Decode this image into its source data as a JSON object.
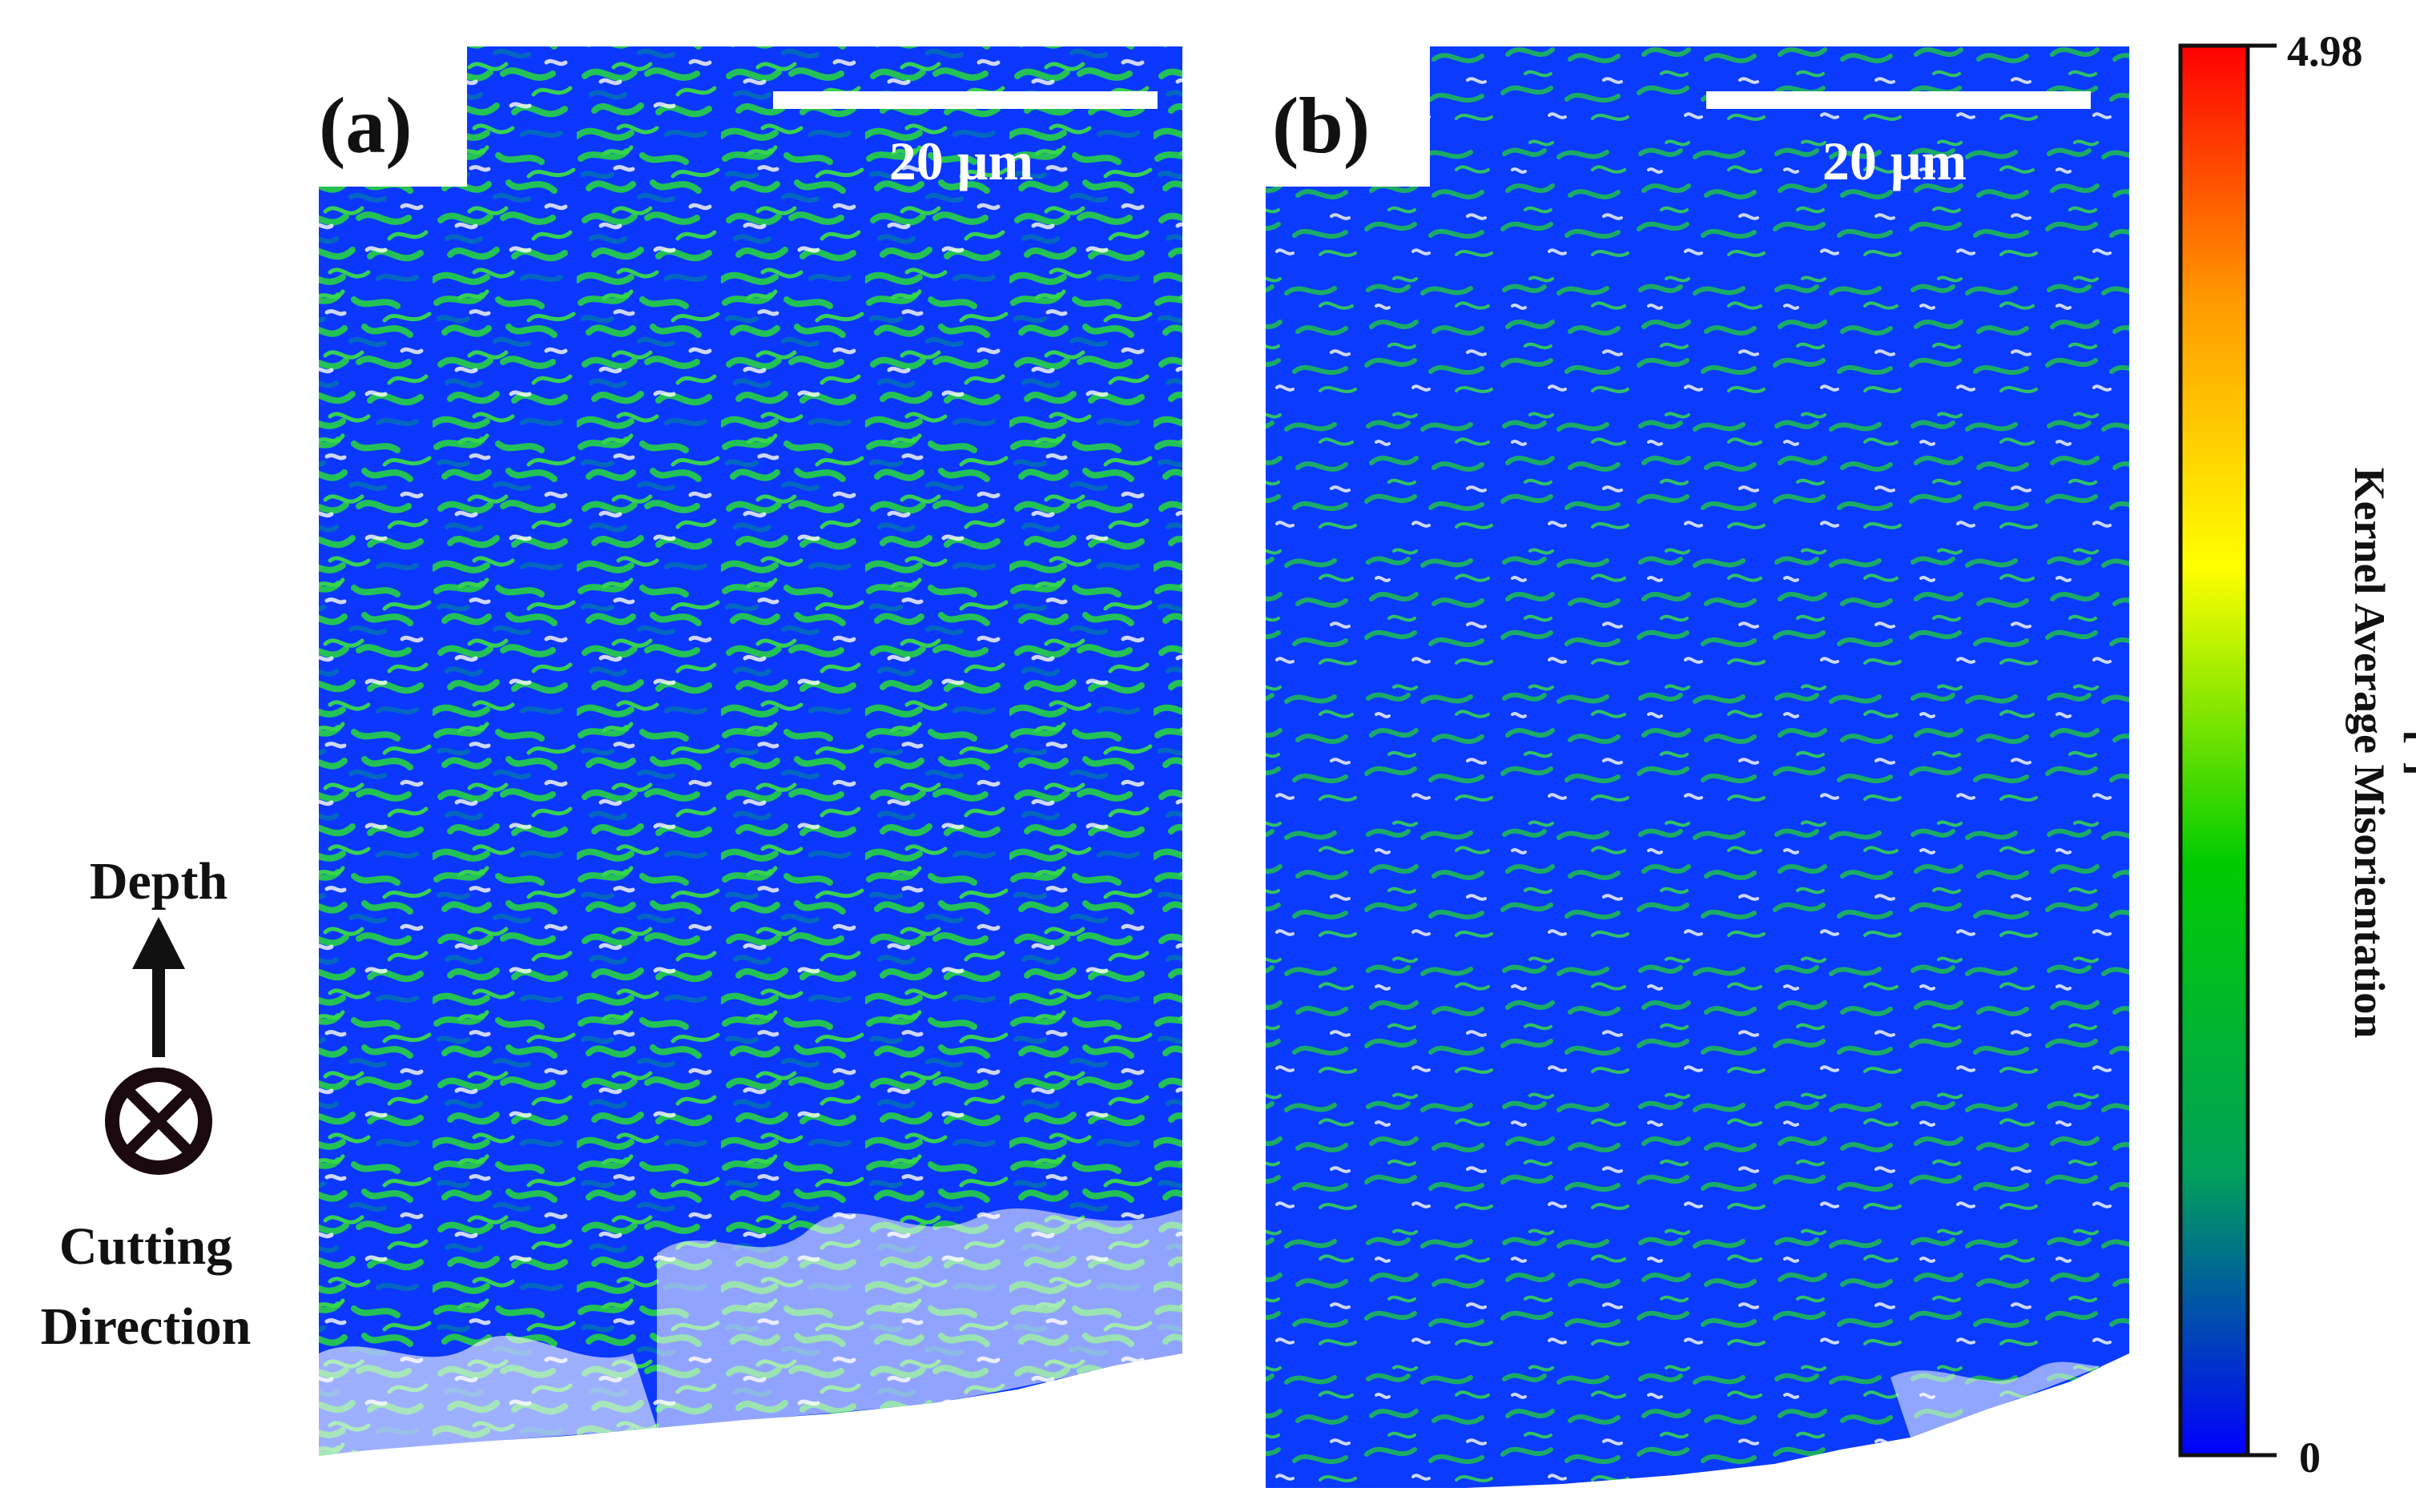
{
  "figure": {
    "panels": [
      {
        "label": "(a)",
        "scale_bar": "20 μm",
        "map_name": "ebsd-map-a"
      },
      {
        "label": "(b)",
        "scale_bar": "20 μm",
        "map_name": "ebsd-map-b"
      }
    ],
    "orientation": {
      "depth": "Depth",
      "cutting_line_1": "Cutting",
      "cutting_line_2": "Direction"
    },
    "colorbar": {
      "title": "Kernel Average Misorientation",
      "unit": "[°]",
      "max": "4.98",
      "min": "0",
      "colors": [
        "#0000ff",
        "#00a05a",
        "#00cc00",
        "#ffff00",
        "#ff9900",
        "#ff0000"
      ]
    }
  },
  "chart_data": {
    "type": "heatmap",
    "title": "",
    "colorbar_label": "Kernel Average Misorientation [°]",
    "colorbar_range": [
      0,
      4.98
    ],
    "panels": [
      "(a)",
      "(b)"
    ],
    "scale_bar": "20 μm"
  }
}
